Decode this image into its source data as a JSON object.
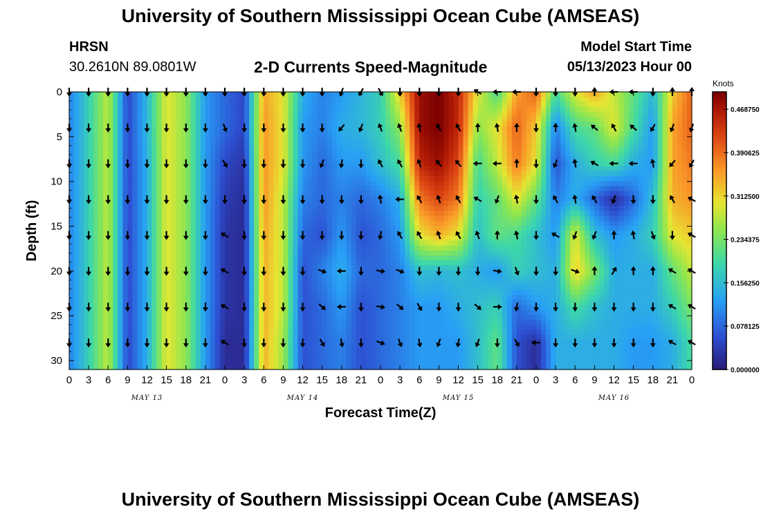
{
  "header": {
    "title": "University of Southern Mississippi Ocean Cube (AMSEAS)",
    "station": "HRSN",
    "coordinates": "30.2610N  89.0801W",
    "subtitle": "2-D Currents Speed-Magnitude",
    "model_start_label": "Model Start Time",
    "model_start_value": "05/13/2023 Hour 00"
  },
  "footer": {
    "title": "University of Southern Mississippi Ocean Cube (AMSEAS)"
  },
  "colors": {
    "low": "#2a1a78",
    "mid": "#3fe09a",
    "high": "#7a0000",
    "arrow": "#000000"
  },
  "chart_data": {
    "type": "heatmap",
    "title": "2-D Currents Speed-Magnitude",
    "xlabel": "Forecast Time(Z)",
    "ylabel": "Depth (ft)",
    "x_tick_labels": [
      "0",
      "3",
      "6",
      "9",
      "12",
      "15",
      "18",
      "21",
      "0",
      "3",
      "6",
      "9",
      "12",
      "15",
      "18",
      "21",
      "0",
      "3",
      "6",
      "9",
      "12",
      "15",
      "18",
      "21",
      "0",
      "3",
      "6",
      "9",
      "12",
      "15",
      "18",
      "21",
      "0"
    ],
    "x_range_hours": [
      0,
      96
    ],
    "day_labels": [
      {
        "label": "MAY 13",
        "hour": 12
      },
      {
        "label": "MAY 14",
        "hour": 36
      },
      {
        "label": "MAY 15",
        "hour": 60
      },
      {
        "label": "MAY 16",
        "hour": 84
      }
    ],
    "ylim": [
      0,
      31
    ],
    "y_ticks": [
      0,
      5,
      10,
      15,
      20,
      25,
      30
    ],
    "y_inverted": true,
    "colorbar": {
      "title": "Knots",
      "range": [
        0,
        0.5
      ],
      "tick_values": [
        0.0,
        0.078125,
        0.15625,
        0.234375,
        0.3125,
        0.390625,
        0.46875
      ],
      "tick_labels": [
        "0.000000",
        "0.078125",
        "0.156250",
        "0.234375",
        "0.312500",
        "0.390625",
        "0.468750"
      ]
    },
    "depths_ft": [
      0,
      4,
      8,
      12,
      16,
      20,
      24,
      28
    ],
    "hours": [
      0,
      3,
      6,
      9,
      12,
      15,
      18,
      21,
      24,
      27,
      30,
      33,
      36,
      39,
      42,
      45,
      48,
      51,
      54,
      57,
      60,
      63,
      66,
      69,
      72,
      75,
      78,
      81,
      84,
      87,
      90,
      93,
      96
    ],
    "speed_knots": [
      [
        0.1,
        0.18,
        0.28,
        0.05,
        0.15,
        0.3,
        0.25,
        0.12,
        0.08,
        0.05,
        0.35,
        0.3,
        0.14,
        0.1,
        0.12,
        0.15,
        0.18,
        0.32,
        0.48,
        0.5,
        0.45,
        0.3,
        0.2,
        0.35,
        0.4,
        0.2,
        0.3,
        0.35,
        0.28,
        0.22,
        0.15,
        0.32,
        0.4
      ],
      [
        0.1,
        0.18,
        0.28,
        0.05,
        0.15,
        0.3,
        0.25,
        0.12,
        0.08,
        0.05,
        0.36,
        0.3,
        0.12,
        0.1,
        0.14,
        0.15,
        0.18,
        0.25,
        0.48,
        0.5,
        0.45,
        0.25,
        0.3,
        0.4,
        0.32,
        0.1,
        0.2,
        0.22,
        0.3,
        0.2,
        0.12,
        0.35,
        0.4
      ],
      [
        0.1,
        0.18,
        0.28,
        0.05,
        0.14,
        0.3,
        0.25,
        0.12,
        0.05,
        0.03,
        0.36,
        0.3,
        0.12,
        0.08,
        0.12,
        0.12,
        0.16,
        0.2,
        0.45,
        0.48,
        0.42,
        0.2,
        0.28,
        0.38,
        0.3,
        0.06,
        0.14,
        0.18,
        0.2,
        0.14,
        0.12,
        0.35,
        0.38
      ],
      [
        0.1,
        0.18,
        0.28,
        0.05,
        0.14,
        0.3,
        0.25,
        0.12,
        0.04,
        0.02,
        0.36,
        0.28,
        0.1,
        0.08,
        0.1,
        0.08,
        0.1,
        0.14,
        0.38,
        0.42,
        0.38,
        0.18,
        0.22,
        0.3,
        0.22,
        0.1,
        0.14,
        0.08,
        0.02,
        0.08,
        0.16,
        0.34,
        0.36
      ],
      [
        0.1,
        0.18,
        0.28,
        0.05,
        0.14,
        0.3,
        0.25,
        0.12,
        0.03,
        0.02,
        0.35,
        0.28,
        0.08,
        0.06,
        0.12,
        0.06,
        0.08,
        0.12,
        0.3,
        0.34,
        0.3,
        0.16,
        0.22,
        0.2,
        0.16,
        0.12,
        0.3,
        0.16,
        0.12,
        0.14,
        0.18,
        0.3,
        0.32
      ],
      [
        0.1,
        0.18,
        0.28,
        0.05,
        0.14,
        0.3,
        0.25,
        0.12,
        0.03,
        0.02,
        0.34,
        0.28,
        0.06,
        0.1,
        0.14,
        0.08,
        0.08,
        0.1,
        0.16,
        0.15,
        0.16,
        0.14,
        0.12,
        0.18,
        0.16,
        0.14,
        0.32,
        0.24,
        0.14,
        0.14,
        0.14,
        0.22,
        0.28
      ],
      [
        0.1,
        0.18,
        0.28,
        0.05,
        0.14,
        0.3,
        0.25,
        0.12,
        0.03,
        0.02,
        0.34,
        0.28,
        0.06,
        0.08,
        0.12,
        0.06,
        0.08,
        0.1,
        0.12,
        0.12,
        0.14,
        0.16,
        0.18,
        0.08,
        0.12,
        0.14,
        0.2,
        0.16,
        0.14,
        0.14,
        0.14,
        0.18,
        0.24
      ],
      [
        0.1,
        0.18,
        0.28,
        0.05,
        0.14,
        0.3,
        0.25,
        0.12,
        0.02,
        0.02,
        0.34,
        0.26,
        0.06,
        0.08,
        0.1,
        0.06,
        0.08,
        0.1,
        0.12,
        0.12,
        0.12,
        0.16,
        0.22,
        0.06,
        0.02,
        0.14,
        0.14,
        0.14,
        0.14,
        0.12,
        0.12,
        0.14,
        0.2
      ]
    ],
    "direction_deg": [
      [
        180,
        180,
        180,
        180,
        180,
        180,
        180,
        180,
        180,
        180,
        180,
        180,
        180,
        180,
        200,
        210,
        150,
        180,
        180,
        180,
        180,
        300,
        270,
        270,
        180,
        180,
        180,
        0,
        270,
        270,
        180,
        0,
        0
      ],
      [
        180,
        180,
        180,
        180,
        180,
        180,
        180,
        180,
        160,
        180,
        180,
        180,
        180,
        180,
        220,
        200,
        340,
        340,
        350,
        330,
        330,
        0,
        350,
        0,
        180,
        0,
        350,
        310,
        330,
        310,
        210,
        200,
        200
      ],
      [
        180,
        180,
        180,
        180,
        180,
        180,
        180,
        180,
        150,
        180,
        180,
        180,
        180,
        200,
        190,
        180,
        330,
        330,
        340,
        320,
        320,
        270,
        270,
        0,
        180,
        200,
        350,
        300,
        270,
        270,
        350,
        220,
        210
      ],
      [
        180,
        180,
        180,
        180,
        180,
        180,
        180,
        180,
        180,
        180,
        180,
        180,
        180,
        180,
        180,
        180,
        350,
        270,
        330,
        340,
        330,
        300,
        200,
        350,
        180,
        330,
        350,
        330,
        200,
        180,
        180,
        330,
        300
      ],
      [
        180,
        180,
        180,
        180,
        180,
        180,
        180,
        180,
        300,
        180,
        180,
        180,
        180,
        180,
        180,
        180,
        190,
        330,
        330,
        340,
        330,
        340,
        0,
        350,
        180,
        300,
        200,
        200,
        0,
        350,
        160,
        180,
        300
      ],
      [
        180,
        180,
        180,
        180,
        180,
        180,
        180,
        180,
        300,
        180,
        180,
        180,
        180,
        110,
        270,
        180,
        100,
        110,
        180,
        180,
        180,
        180,
        100,
        160,
        180,
        180,
        110,
        0,
        30,
        0,
        0,
        300,
        300
      ],
      [
        180,
        180,
        180,
        180,
        180,
        180,
        180,
        180,
        300,
        180,
        180,
        180,
        180,
        130,
        270,
        180,
        100,
        130,
        150,
        180,
        180,
        130,
        90,
        190,
        180,
        180,
        180,
        180,
        180,
        180,
        180,
        300,
        300
      ],
      [
        180,
        180,
        180,
        180,
        180,
        180,
        180,
        180,
        300,
        180,
        180,
        180,
        180,
        150,
        170,
        180,
        110,
        160,
        170,
        200,
        190,
        200,
        180,
        150,
        270,
        180,
        180,
        180,
        180,
        180,
        180,
        300,
        300
      ]
    ]
  }
}
